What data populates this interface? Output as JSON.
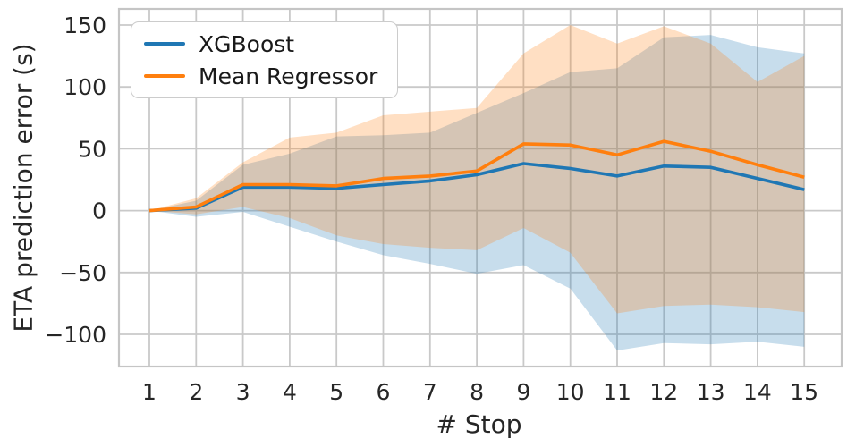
{
  "figure": {
    "background": "#ffffff",
    "grid_color": "#c9c9c9",
    "spine_color": "#c5c5c5",
    "tick_text_color": "#262626"
  },
  "chart_data": {
    "type": "line",
    "title": "",
    "xlabel": "# Stop",
    "ylabel": "ETA prediction error (s)",
    "x": [
      1,
      2,
      3,
      4,
      5,
      6,
      7,
      8,
      9,
      10,
      11,
      12,
      13,
      14,
      15
    ],
    "x_tick_labels": [
      "1",
      "2",
      "3",
      "4",
      "5",
      "6",
      "7",
      "8",
      "9",
      "10",
      "11",
      "12",
      "13",
      "14",
      "15"
    ],
    "y_ticks": [
      150,
      100,
      50,
      0,
      -50,
      -100
    ],
    "xlim": [
      0.35,
      15.8
    ],
    "ylim": [
      -126,
      163
    ],
    "grid": true,
    "legend_position": "upper-left",
    "series": [
      {
        "name": "XGBoost",
        "color": "#1f77b4",
        "band_opacity": 0.25,
        "mean": [
          0,
          2,
          19,
          19,
          18,
          21,
          24,
          29,
          38,
          34,
          28,
          36,
          35,
          26,
          17
        ],
        "band_upper": [
          0,
          8,
          37,
          46,
          60,
          61,
          63,
          79,
          95,
          112,
          115,
          140,
          142,
          132,
          127
        ],
        "band_lower": [
          0,
          -5,
          -1,
          -13,
          -25,
          -36,
          -43,
          -51,
          -44,
          -63,
          -113,
          -107,
          -108,
          -106,
          -110
        ]
      },
      {
        "name": "Mean Regressor",
        "color": "#ff7f0e",
        "band_opacity": 0.25,
        "mean": [
          0,
          3,
          21,
          21,
          20,
          26,
          28,
          32,
          54,
          53,
          45,
          56,
          48,
          37,
          27
        ],
        "band_upper": [
          0,
          10,
          39,
          59,
          63,
          77,
          80,
          83,
          127,
          150,
          135,
          149,
          135,
          104,
          125
        ],
        "band_lower": [
          0,
          -3,
          3,
          -6,
          -20,
          -27,
          -30,
          -32,
          -14,
          -34,
          -83,
          -77,
          -76,
          -78,
          -82
        ]
      }
    ]
  }
}
